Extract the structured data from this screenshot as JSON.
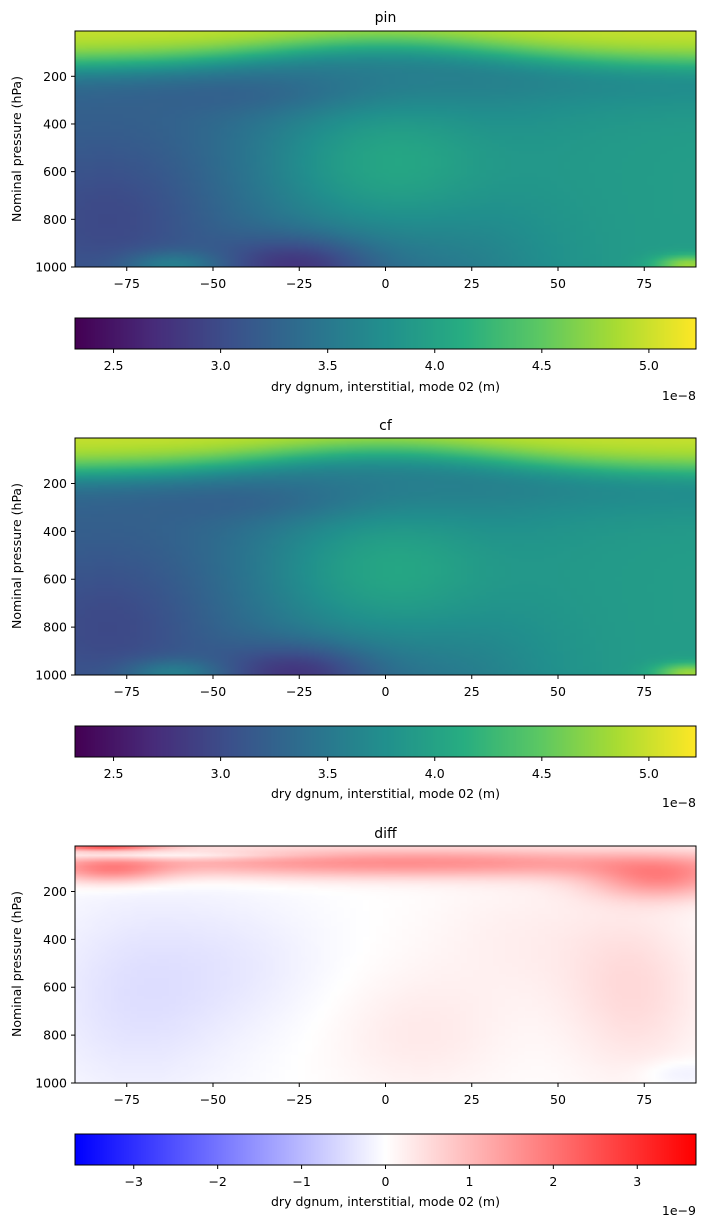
{
  "chart_data": [
    {
      "type": "heatmap",
      "title": "pin",
      "ylabel": "Nominal pressure (hPa)",
      "xlim": [
        -90,
        90
      ],
      "ylim": [
        1000,
        10
      ],
      "x_ticks": [
        "−75",
        "−50",
        "−25",
        "0",
        "25",
        "50",
        "75"
      ],
      "x_tick_values": [
        -75,
        -50,
        -25,
        0,
        25,
        50,
        75
      ],
      "y_ticks": [
        "200",
        "400",
        "600",
        "800",
        "1000"
      ],
      "y_tick_values": [
        200,
        400,
        600,
        800,
        1000
      ],
      "colormap": "viridis",
      "colorbar": {
        "label": "dry dgnum, interstitial, mode 02 (m)",
        "range": [
          2.32e-08,
          5.22e-08
        ],
        "ticks": [
          "2.5",
          "3.0",
          "3.5",
          "4.0",
          "4.5",
          "5.0"
        ],
        "tick_values": [
          2.5e-08,
          3e-08,
          3.5e-08,
          4e-08,
          4.5e-08,
          5e-08
        ],
        "offset": "1e−8"
      },
      "features": [
        {
          "description": "high values near top",
          "pressure": 50,
          "value": 5.1e-08
        },
        {
          "description": "central maximum",
          "lat": 0,
          "pressure": 550,
          "value": 4.3e-08
        },
        {
          "description": "surface minimum",
          "lat": -25,
          "pressure": 980,
          "value": 2.4e-08
        }
      ]
    },
    {
      "type": "heatmap",
      "title": "cf",
      "ylabel": "Nominal pressure (hPa)",
      "xlim": [
        -90,
        90
      ],
      "ylim": [
        1000,
        10
      ],
      "x_ticks": [
        "−75",
        "−50",
        "−25",
        "0",
        "25",
        "50",
        "75"
      ],
      "x_tick_values": [
        -75,
        -50,
        -25,
        0,
        25,
        50,
        75
      ],
      "y_ticks": [
        "200",
        "400",
        "600",
        "800",
        "1000"
      ],
      "y_tick_values": [
        200,
        400,
        600,
        800,
        1000
      ],
      "colormap": "viridis",
      "colorbar": {
        "label": "dry dgnum, interstitial, mode 02 (m)",
        "range": [
          2.32e-08,
          5.22e-08
        ],
        "ticks": [
          "2.5",
          "3.0",
          "3.5",
          "4.0",
          "4.5",
          "5.0"
        ],
        "tick_values": [
          2.5e-08,
          3e-08,
          3.5e-08,
          4e-08,
          4.5e-08,
          5e-08
        ],
        "offset": "1e−8"
      },
      "features": [
        {
          "description": "high values near top",
          "pressure": 50,
          "value": 5.1e-08
        },
        {
          "description": "central maximum",
          "lat": 0,
          "pressure": 550,
          "value": 4.3e-08
        },
        {
          "description": "surface minimum",
          "lat": -25,
          "pressure": 980,
          "value": 2.4e-08
        }
      ]
    },
    {
      "type": "heatmap",
      "title": "diff",
      "ylabel": "Nominal pressure (hPa)",
      "xlim": [
        -90,
        90
      ],
      "ylim": [
        1000,
        10
      ],
      "x_ticks": [
        "−75",
        "−50",
        "−25",
        "0",
        "25",
        "50",
        "75"
      ],
      "x_tick_values": [
        -75,
        -50,
        -25,
        0,
        25,
        50,
        75
      ],
      "y_ticks": [
        "200",
        "400",
        "600",
        "800",
        "1000"
      ],
      "y_tick_values": [
        200,
        400,
        600,
        800,
        1000
      ],
      "colormap": "bwr",
      "colorbar": {
        "label": "dry dgnum, interstitial, mode 02 (m)",
        "range": [
          -3.7e-09,
          3.7e-09
        ],
        "ticks": [
          "−3",
          "−2",
          "−1",
          "0",
          "1",
          "2",
          "3"
        ],
        "tick_values": [
          -3e-09,
          -2e-09,
          -1e-09,
          0,
          1e-09,
          2e-09,
          3e-09
        ],
        "offset": "1e−9"
      },
      "features": [
        {
          "description": "positive band near upper levels",
          "pressure": 80,
          "value": 1.8e-09
        },
        {
          "description": "negative strip near model top",
          "pressure": 40,
          "value": -6e-10
        },
        {
          "description": "weak negative southern mid-troposphere",
          "lat": -75,
          "pressure": 700,
          "value": -4e-10
        },
        {
          "description": "weak positive northern mid-troposphere",
          "lat": 70,
          "pressure": 600,
          "value": 5e-10
        }
      ]
    }
  ]
}
